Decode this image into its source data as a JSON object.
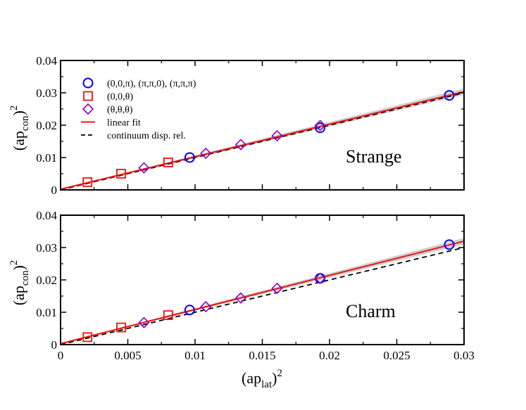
{
  "chart_data": [
    {
      "type": "scatter",
      "panel_label": "Strange",
      "xlabel": "(ap_lat)^2",
      "ylabel": "(ap_con)^2",
      "xlim": [
        0,
        0.03
      ],
      "ylim": [
        0,
        0.04
      ],
      "x_ticks": [
        0,
        0.005,
        0.01,
        0.015,
        0.02,
        0.025,
        0.03
      ],
      "y_ticks": [
        0,
        0.01,
        0.02,
        0.03,
        0.04
      ],
      "x_tick_labels": [
        "0",
        "0.005",
        "0.01",
        "0.015",
        "0.02",
        "0.025",
        "0.03"
      ],
      "y_tick_labels": [
        "0",
        "0.01",
        "0.02",
        "0.03",
        "0.04"
      ],
      "legend": [
        {
          "label": "(0,0,π), (π,π,0), (π,π,π)",
          "marker": "circle",
          "color": "#0000ee"
        },
        {
          "label": "(0,0,θ)",
          "marker": "square",
          "color": "#ee1111"
        },
        {
          "label": "(θ,θ,θ)",
          "marker": "diamond",
          "color": "#8800cc"
        },
        {
          "label": "linear fit",
          "marker": "line",
          "color": "#ee1111"
        },
        {
          "label": "continuum disp. rel.",
          "marker": "dashed",
          "color": "#000000"
        }
      ],
      "series": [
        {
          "name": "(0,0,π), (π,π,0), (π,π,π)",
          "marker": "circle",
          "color": "#0000ee",
          "x": [
            0.0096,
            0.0193,
            0.0289
          ],
          "y": [
            0.01,
            0.0192,
            0.0292
          ]
        },
        {
          "name": "(0,0,θ)",
          "marker": "square",
          "color": "#ee1111",
          "x": [
            0.002,
            0.0045,
            0.008
          ],
          "y": [
            0.0024,
            0.005,
            0.0085
          ]
        },
        {
          "name": "(θ,θ,θ)",
          "marker": "diamond",
          "color": "#8800cc",
          "x": [
            0.0062,
            0.0108,
            0.0134,
            0.0161,
            0.0193
          ],
          "y": [
            0.0068,
            0.0113,
            0.014,
            0.0167,
            0.0199
          ]
        }
      ],
      "fit": {
        "slope": 1.005,
        "intercept": 0.0002,
        "band_halfwidth_at_max": 0.001,
        "color": "#ee1111",
        "band_color": "#d0d0d0"
      },
      "continuum": {
        "slope": 1.0,
        "intercept": 0.0,
        "color": "#000000"
      }
    },
    {
      "type": "scatter",
      "panel_label": "Charm",
      "xlabel": "(ap_lat)^2",
      "ylabel": "(ap_con)^2",
      "xlim": [
        0,
        0.03
      ],
      "ylim": [
        0,
        0.04
      ],
      "x_ticks": [
        0,
        0.005,
        0.01,
        0.015,
        0.02,
        0.025,
        0.03
      ],
      "y_ticks": [
        0,
        0.01,
        0.02,
        0.03,
        0.04
      ],
      "x_tick_labels": [
        "0",
        "0.005",
        "0.01",
        "0.015",
        "0.02",
        "0.025",
        "0.03"
      ],
      "y_tick_labels": [
        "0",
        "0.01",
        "0.02",
        "0.03",
        "0.04"
      ],
      "series": [
        {
          "name": "(0,0,π), (π,π,0), (π,π,π)",
          "marker": "circle",
          "color": "#0000ee",
          "x": [
            0.0096,
            0.0193,
            0.0289
          ],
          "y": [
            0.0107,
            0.0205,
            0.0309
          ]
        },
        {
          "name": "(0,0,θ)",
          "marker": "square",
          "color": "#ee1111",
          "x": [
            0.002,
            0.0045,
            0.008
          ],
          "y": [
            0.0023,
            0.0053,
            0.0091
          ]
        },
        {
          "name": "(θ,θ,θ)",
          "marker": "diamond",
          "color": "#8800cc",
          "x": [
            0.0062,
            0.0108,
            0.0134,
            0.0161,
            0.0193
          ],
          "y": [
            0.0068,
            0.0117,
            0.0144,
            0.0174,
            0.0205
          ]
        }
      ],
      "fit": {
        "slope": 1.055,
        "intercept": 0.0003,
        "band_halfwidth_at_max": 0.001,
        "color": "#ee1111",
        "band_color": "#d0d0d0"
      },
      "continuum": {
        "slope": 1.0,
        "intercept": 0.0,
        "color": "#000000"
      }
    }
  ],
  "axis_text": {
    "y_base": "(ap",
    "y_sub": "con",
    "y_close": ")",
    "y_sup": "2",
    "x_base": "(ap",
    "x_sub": "lat",
    "x_close": ")",
    "x_sup": "2"
  }
}
